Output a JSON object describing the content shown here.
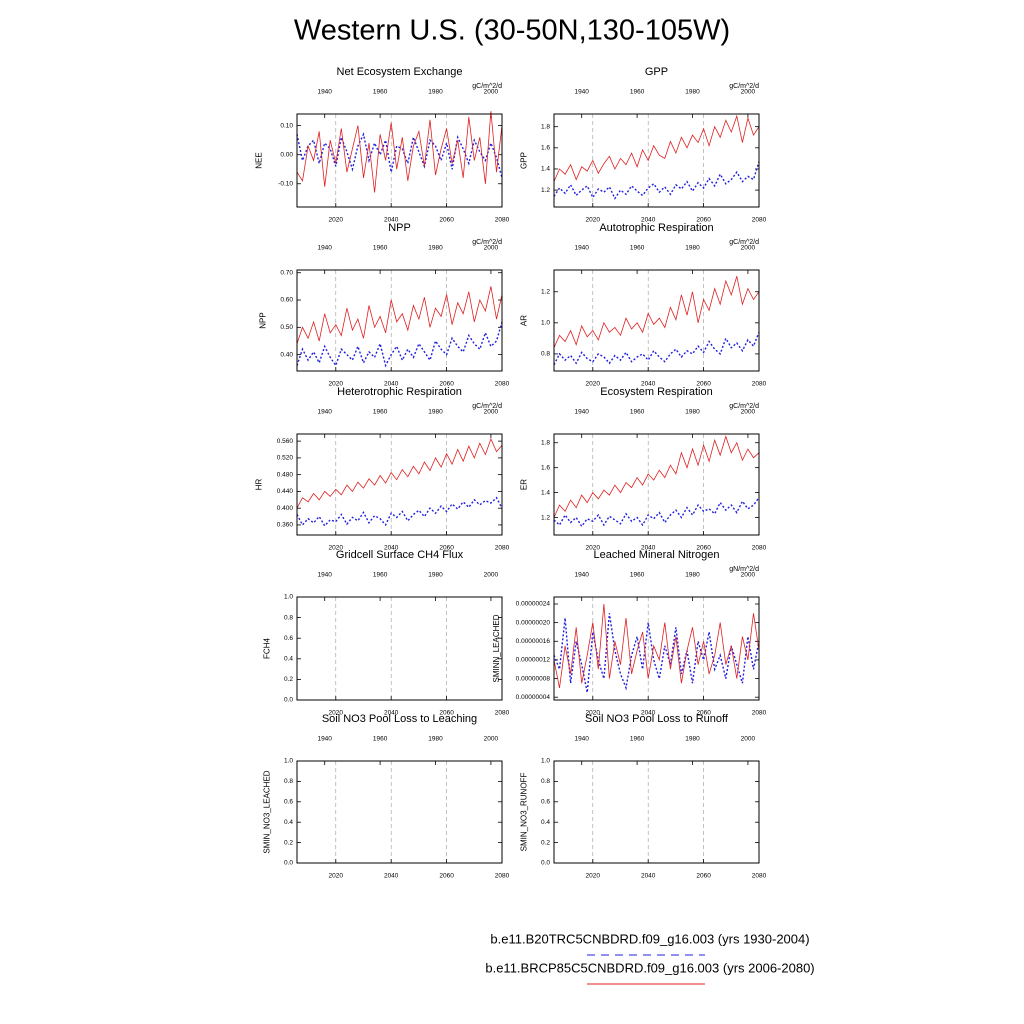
{
  "title": "Western U.S. (30-50N,130-105W)",
  "legend": [
    {
      "label": "b.e11.B20TRC5CNBDRD.f09_g16.003 (yrs 1930-2004)",
      "color": "#1f1fe0",
      "style": "dashed"
    },
    {
      "label": "b.e11.BRCP85C5CNBDRD.f09_g16.003 (yrs 2006-2080)",
      "color": "#e02020",
      "style": "solid"
    }
  ],
  "years": [
    [
      1930,
      1932,
      1934,
      1936,
      1938,
      1940,
      1942,
      1944,
      1946,
      1948,
      1950,
      1952,
      1954,
      1956,
      1958,
      1960,
      1962,
      1964,
      1966,
      1968,
      1970,
      1972,
      1974,
      1976,
      1978,
      1980,
      1982,
      1984,
      1986,
      1988,
      1990,
      1992,
      1994,
      1996,
      1998,
      2000,
      2002,
      2004
    ],
    [
      2006,
      2008,
      2010,
      2012,
      2014,
      2016,
      2018,
      2020,
      2022,
      2024,
      2026,
      2028,
      2030,
      2032,
      2034,
      2036,
      2038,
      2040,
      2042,
      2044,
      2046,
      2048,
      2050,
      2052,
      2054,
      2056,
      2058,
      2060,
      2062,
      2064,
      2066,
      2068,
      2070,
      2072,
      2074,
      2076,
      2078,
      2080
    ]
  ],
  "chart_data": [
    {
      "type": "line",
      "title": "Net Ecosystem Exchange",
      "ylabel": "NEE",
      "units": "gC/m^2/d",
      "xlim": [
        2006,
        2080
      ],
      "xticks": [
        2020,
        2040,
        2060,
        2080
      ],
      "x2lim": [
        1930,
        2004
      ],
      "x2ticks": [
        1940,
        1960,
        1980,
        2000
      ],
      "ylim": [
        -0.18,
        0.14
      ],
      "yticks": [
        {
          "value": -0.1,
          "label": "-0.10"
        },
        {
          "value": 0,
          "label": "0.00"
        },
        {
          "value": 0.1,
          "label": "0.10"
        }
      ],
      "series": [
        {
          "values": [
            0.07,
            -0.02,
            0.03,
            0.05,
            -0.03,
            0.04,
            0.02,
            -0.04,
            0.06,
            0.01,
            -0.05,
            0.03,
            0.07,
            -0.02,
            0.04,
            0.0,
            0.05,
            -0.06,
            0.03,
            0.02,
            -0.03,
            0.06,
            0.01,
            -0.04,
            0.05,
            0.03,
            -0.02,
            0.04,
            -0.05,
            0.06,
            0.02,
            -0.03,
            0.05,
            0.01,
            -0.02,
            0.04,
            -0.01,
            -0.08
          ]
        },
        {
          "values": [
            -0.06,
            -0.09,
            0.03,
            -0.02,
            0.08,
            -0.11,
            0.05,
            -0.03,
            0.09,
            -0.06,
            0.02,
            0.1,
            -0.08,
            0.04,
            -0.13,
            0.07,
            -0.02,
            0.11,
            -0.05,
            0.06,
            -0.09,
            0.03,
            0.08,
            -0.04,
            0.12,
            -0.07,
            0.02,
            0.09,
            -0.03,
            0.05,
            -0.08,
            0.13,
            -0.02,
            0.06,
            -0.1,
            0.15,
            -0.06,
            0.1
          ]
        }
      ]
    },
    {
      "type": "line",
      "title": "GPP",
      "ylabel": "GPP",
      "units": "gC/m^2/d",
      "xlim": [
        2006,
        2080
      ],
      "xticks": [
        2020,
        2040,
        2060,
        2080
      ],
      "x2lim": [
        1930,
        2004
      ],
      "x2ticks": [
        1940,
        1960,
        1980,
        2000
      ],
      "ylim": [
        1.04,
        1.92
      ],
      "yticks": [
        1.2,
        1.4,
        1.6,
        1.8
      ],
      "series": [
        {
          "values": [
            1.14,
            1.22,
            1.17,
            1.25,
            1.15,
            1.2,
            1.24,
            1.13,
            1.21,
            1.18,
            1.23,
            1.12,
            1.2,
            1.16,
            1.24,
            1.19,
            1.15,
            1.22,
            1.26,
            1.18,
            1.23,
            1.16,
            1.25,
            1.21,
            1.28,
            1.19,
            1.27,
            1.22,
            1.31,
            1.24,
            1.35,
            1.26,
            1.3,
            1.37,
            1.28,
            1.33,
            1.3,
            1.47
          ]
        },
        {
          "values": [
            1.28,
            1.4,
            1.35,
            1.44,
            1.3,
            1.42,
            1.38,
            1.48,
            1.36,
            1.45,
            1.52,
            1.4,
            1.5,
            1.44,
            1.55,
            1.42,
            1.58,
            1.48,
            1.62,
            1.53,
            1.5,
            1.66,
            1.55,
            1.7,
            1.6,
            1.72,
            1.65,
            1.78,
            1.62,
            1.8,
            1.7,
            1.86,
            1.75,
            1.9,
            1.65,
            1.88,
            1.72,
            1.8
          ]
        }
      ]
    },
    {
      "type": "line",
      "title": "NPP",
      "ylabel": "NPP",
      "units": "gC/m^2/d",
      "xlim": [
        2006,
        2080
      ],
      "xticks": [
        2020,
        2040,
        2060,
        2080
      ],
      "x2lim": [
        1930,
        2004
      ],
      "x2ticks": [
        1940,
        1960,
        1980,
        2000
      ],
      "ylim": [
        0.34,
        0.71
      ],
      "yticks": [
        {
          "value": 0.4,
          "label": "0.40"
        },
        {
          "value": 0.5,
          "label": "0.50"
        },
        {
          "value": 0.6,
          "label": "0.60"
        },
        {
          "value": 0.7,
          "label": "0.70"
        }
      ],
      "series": [
        {
          "values": [
            0.36,
            0.42,
            0.38,
            0.41,
            0.37,
            0.43,
            0.39,
            0.36,
            0.42,
            0.4,
            0.38,
            0.43,
            0.37,
            0.41,
            0.39,
            0.44,
            0.36,
            0.4,
            0.43,
            0.38,
            0.42,
            0.39,
            0.44,
            0.41,
            0.38,
            0.45,
            0.42,
            0.4,
            0.46,
            0.43,
            0.41,
            0.47,
            0.44,
            0.42,
            0.48,
            0.43,
            0.45,
            0.52
          ]
        },
        {
          "values": [
            0.44,
            0.5,
            0.46,
            0.52,
            0.45,
            0.55,
            0.48,
            0.51,
            0.47,
            0.57,
            0.49,
            0.53,
            0.46,
            0.58,
            0.5,
            0.54,
            0.48,
            0.6,
            0.52,
            0.55,
            0.49,
            0.58,
            0.53,
            0.61,
            0.5,
            0.57,
            0.54,
            0.62,
            0.51,
            0.59,
            0.55,
            0.63,
            0.52,
            0.6,
            0.56,
            0.65,
            0.53,
            0.62
          ]
        }
      ]
    },
    {
      "type": "line",
      "title": "Autotrophic Respiration",
      "ylabel": "AR",
      "units": "gC/m^2/d",
      "xlim": [
        2006,
        2080
      ],
      "xticks": [
        2020,
        2040,
        2060,
        2080
      ],
      "x2lim": [
        1930,
        2004
      ],
      "x2ticks": [
        1940,
        1960,
        1980,
        2000
      ],
      "ylim": [
        0.69,
        1.34
      ],
      "yticks": [
        0.8,
        {
          "value": 1.0,
          "label": "1.0"
        },
        1.2
      ],
      "series": [
        {
          "values": [
            0.73,
            0.8,
            0.76,
            0.79,
            0.74,
            0.81,
            0.77,
            0.75,
            0.8,
            0.78,
            0.74,
            0.79,
            0.76,
            0.81,
            0.75,
            0.78,
            0.8,
            0.76,
            0.82,
            0.78,
            0.75,
            0.8,
            0.83,
            0.78,
            0.82,
            0.8,
            0.85,
            0.81,
            0.88,
            0.83,
            0.8,
            0.9,
            0.84,
            0.87,
            0.82,
            0.89,
            0.85,
            0.94
          ]
        },
        {
          "values": [
            0.84,
            0.92,
            0.88,
            0.95,
            0.86,
            0.98,
            0.91,
            0.95,
            0.89,
            1.0,
            0.94,
            0.97,
            0.92,
            1.03,
            0.96,
            1.0,
            0.94,
            1.06,
            0.99,
            1.03,
            0.97,
            1.1,
            1.02,
            1.18,
            1.05,
            1.2,
            1.0,
            1.15,
            1.08,
            1.22,
            1.12,
            1.27,
            1.18,
            1.3,
            1.12,
            1.22,
            1.15,
            1.2
          ]
        }
      ]
    },
    {
      "type": "line",
      "title": "Heterotrophic Respiration",
      "ylabel": "HR",
      "units": "gC/m^2/d",
      "xlim": [
        2006,
        2080
      ],
      "xticks": [
        2020,
        2040,
        2060,
        2080
      ],
      "x2lim": [
        1930,
        2004
      ],
      "x2ticks": [
        1940,
        1960,
        1980,
        2000
      ],
      "ylim": [
        0.336,
        0.577
      ],
      "yticks": [
        {
          "value": 0.36,
          "label": "0.360"
        },
        {
          "value": 0.4,
          "label": "0.400"
        },
        {
          "value": 0.44,
          "label": "0.440"
        },
        {
          "value": 0.48,
          "label": "0.480"
        },
        {
          "value": 0.52,
          "label": "0.520"
        },
        {
          "value": 0.56,
          "label": "0.560"
        }
      ],
      "series": [
        {
          "values": [
            0.385,
            0.36,
            0.375,
            0.365,
            0.38,
            0.358,
            0.372,
            0.368,
            0.385,
            0.362,
            0.378,
            0.37,
            0.39,
            0.365,
            0.382,
            0.375,
            0.36,
            0.388,
            0.378,
            0.392,
            0.37,
            0.385,
            0.395,
            0.38,
            0.4,
            0.388,
            0.405,
            0.392,
            0.41,
            0.398,
            0.415,
            0.402,
            0.42,
            0.408,
            0.418,
            0.412,
            0.425,
            0.4
          ]
        },
        {
          "values": [
            0.4,
            0.425,
            0.415,
            0.435,
            0.42,
            0.44,
            0.428,
            0.445,
            0.432,
            0.455,
            0.44,
            0.462,
            0.448,
            0.47,
            0.455,
            0.478,
            0.46,
            0.485,
            0.468,
            0.492,
            0.475,
            0.5,
            0.482,
            0.51,
            0.49,
            0.52,
            0.498,
            0.53,
            0.505,
            0.54,
            0.512,
            0.548,
            0.52,
            0.555,
            0.528,
            0.565,
            0.535,
            0.55
          ]
        }
      ]
    },
    {
      "type": "line",
      "title": "Ecosystem Respiration",
      "ylabel": "ER",
      "units": "gC/m^2/d",
      "xlim": [
        2006,
        2080
      ],
      "xticks": [
        2020,
        2040,
        2060,
        2080
      ],
      "x2lim": [
        1930,
        2004
      ],
      "x2ticks": [
        1940,
        1960,
        1980,
        2000
      ],
      "ylim": [
        1.06,
        1.87
      ],
      "yticks": [
        1.2,
        1.4,
        1.6,
        1.8
      ],
      "series": [
        {
          "values": [
            1.18,
            1.14,
            1.22,
            1.16,
            1.2,
            1.13,
            1.19,
            1.17,
            1.22,
            1.14,
            1.21,
            1.18,
            1.15,
            1.23,
            1.17,
            1.2,
            1.14,
            1.22,
            1.19,
            1.24,
            1.16,
            1.22,
            1.26,
            1.2,
            1.28,
            1.22,
            1.3,
            1.25,
            1.27,
            1.23,
            1.32,
            1.26,
            1.3,
            1.24,
            1.33,
            1.27,
            1.3,
            1.36
          ]
        },
        {
          "values": [
            1.2,
            1.3,
            1.25,
            1.34,
            1.28,
            1.38,
            1.32,
            1.4,
            1.35,
            1.42,
            1.38,
            1.46,
            1.4,
            1.48,
            1.44,
            1.52,
            1.46,
            1.55,
            1.5,
            1.58,
            1.52,
            1.62,
            1.55,
            1.72,
            1.6,
            1.75,
            1.62,
            1.78,
            1.65,
            1.82,
            1.7,
            1.85,
            1.72,
            1.8,
            1.66,
            1.75,
            1.68,
            1.72
          ]
        }
      ]
    },
    {
      "type": "line",
      "title": "Gridcell Surface CH4 Flux",
      "ylabel": "FCH4",
      "xlim": [
        2006,
        2080
      ],
      "xticks": [
        2020,
        2040,
        2060,
        2080
      ],
      "x2lim": [
        1930,
        2004
      ],
      "x2ticks": [
        1940,
        1960,
        1980,
        2000
      ],
      "ylim": [
        0,
        1
      ],
      "yticks": [
        {
          "value": 0,
          "label": "0.0"
        },
        0.2,
        0.4,
        0.6,
        0.8,
        {
          "value": 1,
          "label": "1.0"
        }
      ],
      "series": []
    },
    {
      "type": "line",
      "title": "Leached Mineral Nitrogen",
      "ylabel": "SMINN_LEACHED",
      "units": "gN/m^2/d",
      "xlim": [
        2006,
        2080
      ],
      "xticks": [
        2020,
        2040,
        2060,
        2080
      ],
      "x2lim": [
        1930,
        2004
      ],
      "x2ticks": [
        1940,
        1960,
        1980,
        2000
      ],
      "ylim": [
        3.4e-08,
        2.55e-07
      ],
      "yticks": [
        {
          "value": 4e-08,
          "label": "0.00000004"
        },
        {
          "value": 8e-08,
          "label": "0.00000008"
        },
        {
          "value": 1.2e-07,
          "label": "0.00000012"
        },
        {
          "value": 1.6e-07,
          "label": "0.00000016"
        },
        {
          "value": 2e-07,
          "label": "0.00000020"
        },
        {
          "value": 2.4e-07,
          "label": "0.00000024"
        }
      ],
      "series": [
        {
          "values": [
            1.3e-07,
            1e-07,
            2.1e-07,
            7e-08,
            1.6e-07,
            1.1e-07,
            5e-08,
            1.8e-07,
            1.2e-07,
            8e-08,
            2.2e-07,
            1.4e-07,
            9e-08,
            6e-08,
            1.3e-07,
            1.7e-07,
            1e-07,
            2e-07,
            1.2e-07,
            8e-08,
            1.5e-07,
            1.1e-07,
            1.9e-07,
            9e-08,
            1.4e-07,
            7e-08,
            1.6e-07,
            1.2e-07,
            1.8e-07,
            1e-07,
            1.3e-07,
            8e-08,
            1.5e-07,
            1.1e-07,
            7e-08,
            1.7e-07,
            1e-07,
            1.6e-07
          ]
        },
        {
          "values": [
            1.2e-07,
            6e-08,
            1.5e-07,
            9e-08,
            1.9e-07,
            7e-08,
            1.3e-07,
            2e-07,
            1e-07,
            2.4e-07,
            8e-08,
            1.6e-07,
            1.1e-07,
            2.1e-07,
            9e-08,
            1.4e-07,
            1.8e-07,
            8e-08,
            1.5e-07,
            1.2e-07,
            2e-07,
            1e-07,
            1.7e-07,
            7e-08,
            1.4e-07,
            1.9e-07,
            1.1e-07,
            1.6e-07,
            9e-08,
            1.3e-07,
            2e-07,
            1.1e-07,
            1.5e-07,
            8e-08,
            1.7e-07,
            1.2e-07,
            2.2e-07,
            1.4e-07
          ]
        }
      ]
    },
    {
      "type": "line",
      "title": "Soil NO3 Pool Loss to Leaching",
      "ylabel": "SMIN_NO3_LEACHED",
      "xlim": [
        2006,
        2080
      ],
      "xticks": [
        2020,
        2040,
        2060,
        2080
      ],
      "x2lim": [
        1930,
        2004
      ],
      "x2ticks": [
        1940,
        1960,
        1980,
        2000
      ],
      "ylim": [
        0,
        1
      ],
      "yticks": [
        {
          "value": 0,
          "label": "0.0"
        },
        0.2,
        0.4,
        0.6,
        0.8,
        {
          "value": 1,
          "label": "1.0"
        }
      ],
      "series": []
    },
    {
      "type": "line",
      "title": "Soil NO3 Pool Loss to Runoff",
      "ylabel": "SMIN_NO3_RUNOFF",
      "xlim": [
        2006,
        2080
      ],
      "xticks": [
        2020,
        2040,
        2060,
        2080
      ],
      "x2lim": [
        1930,
        2004
      ],
      "x2ticks": [
        1940,
        1960,
        1980,
        2000
      ],
      "ylim": [
        0,
        1
      ],
      "yticks": [
        {
          "value": 0,
          "label": "0.0"
        },
        0.2,
        0.4,
        0.6,
        0.8,
        {
          "value": 1,
          "label": "1.0"
        }
      ],
      "series": []
    }
  ]
}
